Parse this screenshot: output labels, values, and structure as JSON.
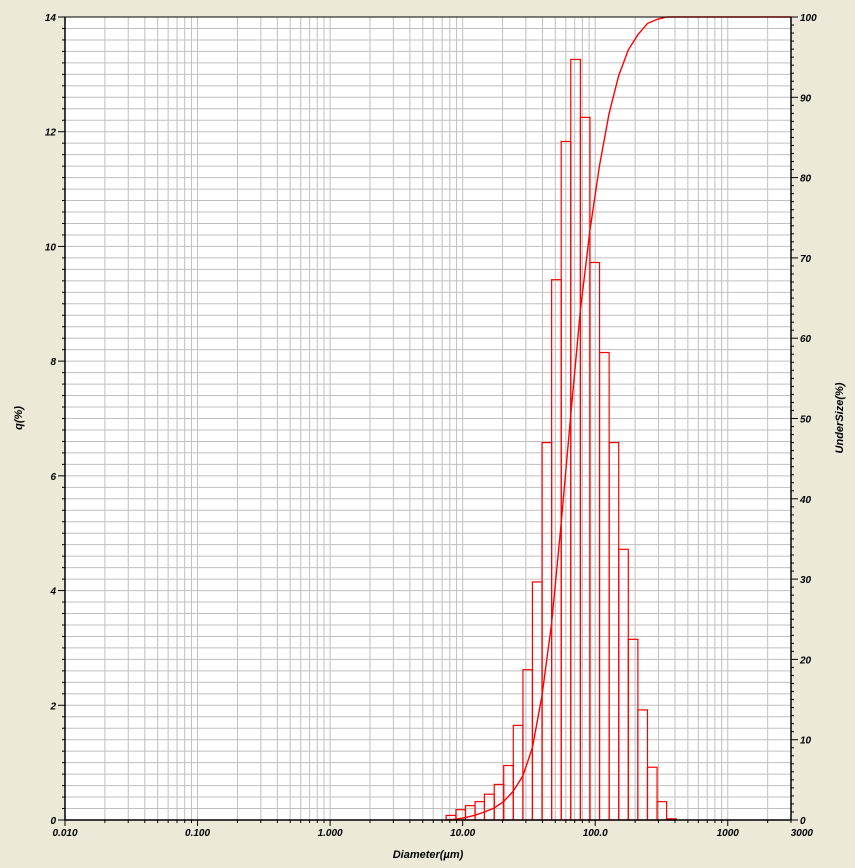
{
  "chart_data": {
    "type": "bar",
    "xlabel": "Diameter(µm)",
    "ylabel_left": "q(%)",
    "ylabel_right": "UnderSize(%)",
    "x_scale": "log",
    "xlim": [
      0.01,
      3000
    ],
    "x_ticks": [
      "0.010",
      "0.100",
      "1.000",
      "10.00",
      "100.0",
      "1000",
      "3000"
    ],
    "ylim_left": [
      0,
      14
    ],
    "y_ticks_left": [
      "0",
      "2",
      "4",
      "6",
      "8",
      "10",
      "12",
      "14"
    ],
    "ylim_right": [
      0,
      100
    ],
    "y_ticks_right": [
      "0",
      "10",
      "20",
      "30",
      "40",
      "50",
      "60",
      "70",
      "80",
      "90",
      "100"
    ],
    "grid": true,
    "colors": {
      "series": "#FF0000",
      "background": "#FFFFFF",
      "frame": "#ECE9D8",
      "grid": "#C0C0C0"
    },
    "bars": {
      "name": "q(%)",
      "bin_edges": [
        7.5,
        8.9,
        10.5,
        12.4,
        14.6,
        17.3,
        20.4,
        24.1,
        28.5,
        33.6,
        39.7,
        46.9,
        55.4,
        65.4,
        77.3,
        91.3,
        107.8,
        127.4,
        150.4,
        177.7,
        209.9,
        247.9,
        292.8,
        345.8,
        408.5
      ],
      "values": [
        0.08,
        0.18,
        0.25,
        0.32,
        0.45,
        0.62,
        0.95,
        1.65,
        2.62,
        4.15,
        6.58,
        9.42,
        11.83,
        13.26,
        12.25,
        9.72,
        8.15,
        6.58,
        4.72,
        3.15,
        1.92,
        0.92,
        0.32,
        0.02
      ]
    },
    "cumulative": {
      "name": "UnderSize(%)",
      "x": [
        7.5,
        8.9,
        10.5,
        12.4,
        14.6,
        17.3,
        20.4,
        24.1,
        28.5,
        33.6,
        39.7,
        46.9,
        55.4,
        65.4,
        77.3,
        91.3,
        107.8,
        127.4,
        150.4,
        177.7,
        209.9,
        247.9,
        292.8,
        345.8,
        408.5,
        3000
      ],
      "y": [
        0,
        0.1,
        0.3,
        0.6,
        1.0,
        1.5,
        2.3,
        3.6,
        5.5,
        9.0,
        15.5,
        24.5,
        37.0,
        50.5,
        63.5,
        73.5,
        81.5,
        88.0,
        92.7,
        95.9,
        97.8,
        99.2,
        99.7,
        100,
        100,
        100
      ]
    }
  }
}
